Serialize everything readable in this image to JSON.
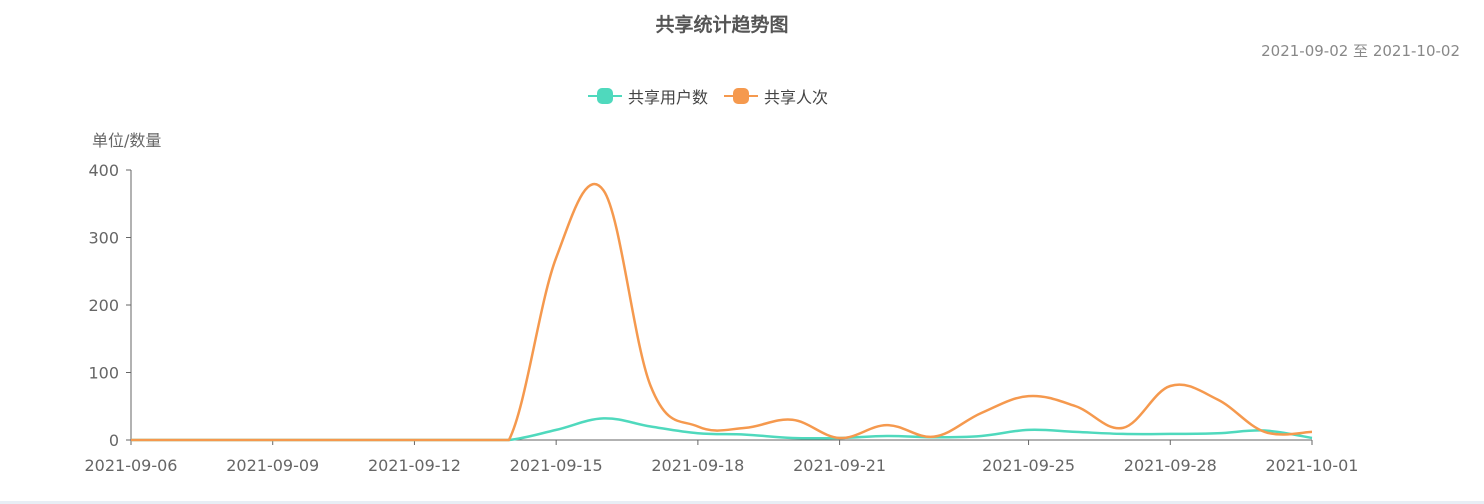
{
  "chart_data": {
    "type": "line",
    "title": "共享统计趋势图",
    "date_range": "2021-09-02 至 2021-10-02",
    "ylabel": "单位/数量",
    "ylim": [
      0,
      400
    ],
    "yticks": [
      0,
      100,
      200,
      300,
      400
    ],
    "xlim": [
      "2021-09-06",
      "2021-10-01"
    ],
    "xticks": [
      "2021-09-06",
      "2021-09-09",
      "2021-09-12",
      "2021-09-15",
      "2021-09-18",
      "2021-09-21",
      "2021-09-25",
      "2021-09-28",
      "2021-10-01"
    ],
    "legend_position": "top-center",
    "grid": false,
    "x": [
      "2021-09-06",
      "2021-09-07",
      "2021-09-08",
      "2021-09-09",
      "2021-09-10",
      "2021-09-11",
      "2021-09-12",
      "2021-09-13",
      "2021-09-14",
      "2021-09-15",
      "2021-09-16",
      "2021-09-17",
      "2021-09-18",
      "2021-09-19",
      "2021-09-20",
      "2021-09-21",
      "2021-09-22",
      "2021-09-23",
      "2021-09-24",
      "2021-09-25",
      "2021-09-26",
      "2021-09-27",
      "2021-09-28",
      "2021-09-29",
      "2021-09-30",
      "2021-10-01"
    ],
    "series": [
      {
        "name": "共享用户数",
        "color": "#4fd9bd",
        "values": [
          0,
          0,
          0,
          0,
          0,
          0,
          0,
          0,
          0,
          15,
          32,
          20,
          10,
          8,
          3,
          3,
          6,
          4,
          6,
          15,
          12,
          9,
          9,
          10,
          14,
          3
        ]
      },
      {
        "name": "共享人次",
        "color": "#f5994e",
        "values": [
          0,
          0,
          0,
          0,
          0,
          0,
          0,
          0,
          0,
          270,
          370,
          80,
          20,
          18,
          30,
          3,
          22,
          5,
          40,
          65,
          50,
          18,
          80,
          60,
          12,
          12
        ]
      }
    ]
  }
}
